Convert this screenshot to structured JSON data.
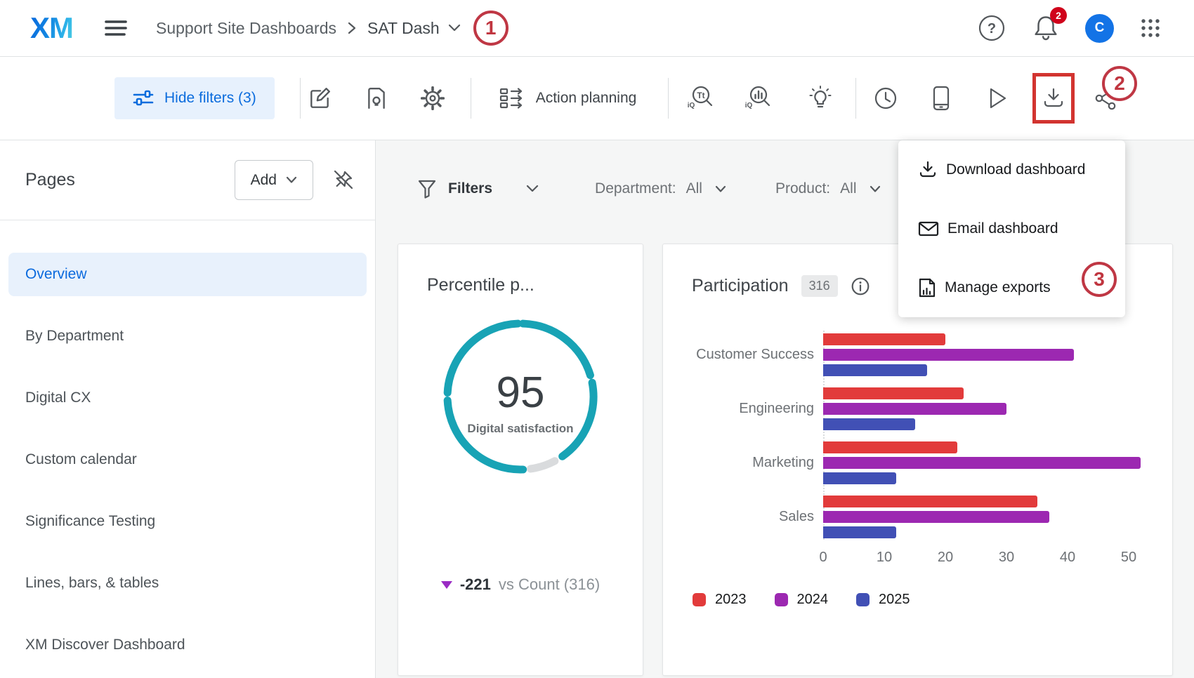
{
  "header": {
    "logo_text": "XM",
    "breadcrumb": {
      "parent": "Support Site Dashboards",
      "current": "SAT Dash"
    },
    "notification_count": "2",
    "avatar_initial": "C"
  },
  "annotations": {
    "step1": "1",
    "step2": "2",
    "step3": "3"
  },
  "toolbar": {
    "hide_filters_label": "Hide filters (3)",
    "action_planning_label": "Action planning"
  },
  "download_menu": {
    "items": [
      {
        "label": "Download dashboard"
      },
      {
        "label": "Email dashboard"
      },
      {
        "label": "Manage exports"
      }
    ]
  },
  "sidebar": {
    "title": "Pages",
    "add_button_label": "Add",
    "items": [
      {
        "label": "Overview",
        "active": true
      },
      {
        "label": "By Department",
        "active": false
      },
      {
        "label": "Digital CX",
        "active": false
      },
      {
        "label": "Custom calendar",
        "active": false
      },
      {
        "label": "Significance Testing",
        "active": false
      },
      {
        "label": "Lines, bars, & tables",
        "active": false
      },
      {
        "label": "XM Discover Dashboard",
        "active": false
      }
    ]
  },
  "filters_bar": {
    "filters_label": "Filters",
    "department_label": "Department:",
    "department_value": "All",
    "product_label": "Product:",
    "product_value": "All"
  },
  "colors": {
    "brand_blue": "#0b6cdd",
    "annotation_red": "#bf3744",
    "download_highlight_red": "#d23430",
    "notification_badge_red": "#d0021b",
    "avatar_blue": "#1373e6",
    "gauge_teal": "#18a3b5"
  },
  "chart_data": [
    {
      "type": "gauge",
      "title": "Percentile p...",
      "value": 95,
      "max": 100,
      "center_label": "95",
      "center_sublabel": "Digital satisfaction",
      "delta": "-221",
      "delta_direction": "down",
      "comparison": "vs Count (316)",
      "color": "#18a3b5"
    },
    {
      "type": "bar",
      "orientation": "horizontal",
      "title": "Participation",
      "badge": "316",
      "categories": [
        "Customer Success",
        "Engineering",
        "Marketing",
        "Sales"
      ],
      "series": [
        {
          "name": "2023",
          "color": "#e23b3b",
          "values": [
            20,
            23,
            22,
            35
          ]
        },
        {
          "name": "2024",
          "color": "#9c28b1",
          "values": [
            41,
            30,
            52,
            37
          ]
        },
        {
          "name": "2025",
          "color": "#4150b5",
          "values": [
            17,
            15,
            12,
            12
          ]
        }
      ],
      "xticks": [
        0,
        10,
        20,
        30,
        40,
        50
      ],
      "xlim": [
        0,
        50
      ],
      "legend_position": "bottom",
      "grid": false
    }
  ]
}
